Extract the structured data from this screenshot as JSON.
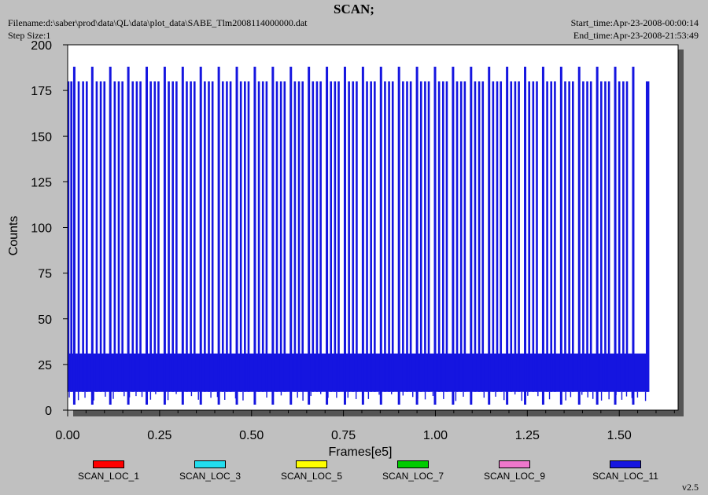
{
  "header": {
    "title": "SCAN;",
    "filename": "Filename:d:\\saber\\prod\\data\\QL\\data\\plot_data\\SABE_Tlm2008114000000.dat",
    "step_size": "Step Size:1",
    "start_time": "Start_time:Apr-23-2008-00:00:14",
    "end_time": "End_time:Apr-23-2008-21:53:49"
  },
  "version": "v2.5",
  "colors": {
    "background": "#c0c0c0",
    "plot_bg": "#ffffff",
    "series_main": "#1515e0"
  },
  "chart_data": {
    "type": "line",
    "title": "SCAN;",
    "xlabel": "Frames[e5]",
    "ylabel": "Counts",
    "xlim": [
      0,
      1.66
    ],
    "ylim": [
      0,
      200
    ],
    "x_ticks": [
      "0.00",
      "0.25",
      "0.50",
      "0.75",
      "1.00",
      "1.25",
      "1.50"
    ],
    "y_ticks": [
      "0",
      "25",
      "50",
      "75",
      "100",
      "125",
      "150",
      "175",
      "200"
    ],
    "legend": [
      {
        "name": "SCAN_LOC_1",
        "color": "#ff0000"
      },
      {
        "name": "SCAN_LOC_3",
        "color": "#22ddee"
      },
      {
        "name": "SCAN_LOC_5",
        "color": "#ffff00"
      },
      {
        "name": "SCAN_LOC_7",
        "color": "#00cc00"
      },
      {
        "name": "SCAN_LOC_9",
        "color": "#ee77cc"
      },
      {
        "name": "SCAN_LOC_11",
        "color": "#1515e0"
      }
    ],
    "series": [
      {
        "name": "SCAN_LOC_11",
        "x_range": [
          0,
          1.58
        ],
        "baseline_band": [
          10,
          31
        ],
        "low_spikes": 3,
        "mid_spike_level": 180,
        "tall_spike_level": 188,
        "tall_spike_positions": [
          0.018,
          0.067,
          0.116,
          0.165,
          0.215,
          0.264,
          0.313,
          0.362,
          0.411,
          0.46,
          0.509,
          0.558,
          0.607,
          0.656,
          0.705,
          0.754,
          0.803,
          0.852,
          0.901,
          0.95,
          0.999,
          1.048,
          1.097,
          1.146,
          1.195,
          1.244,
          1.293,
          1.342,
          1.391,
          1.44,
          1.489,
          1.538
        ],
        "mid_spike_positions": [
          0.002,
          0.01,
          0.03,
          0.042,
          0.052,
          0.079,
          0.09,
          0.1,
          0.128,
          0.139,
          0.149,
          0.177,
          0.188,
          0.198,
          0.226,
          0.237,
          0.247,
          0.275,
          0.286,
          0.296,
          0.324,
          0.335,
          0.345,
          0.373,
          0.384,
          0.394,
          0.422,
          0.433,
          0.443,
          0.471,
          0.482,
          0.492,
          0.52,
          0.531,
          0.541,
          0.569,
          0.58,
          0.59,
          0.618,
          0.629,
          0.639,
          0.667,
          0.678,
          0.688,
          0.716,
          0.727,
          0.737,
          0.765,
          0.776,
          0.786,
          0.814,
          0.825,
          0.835,
          0.863,
          0.874,
          0.884,
          0.912,
          0.923,
          0.933,
          0.961,
          0.972,
          0.982,
          1.01,
          1.021,
          1.031,
          1.059,
          1.07,
          1.08,
          1.108,
          1.119,
          1.129,
          1.157,
          1.168,
          1.178,
          1.206,
          1.217,
          1.227,
          1.255,
          1.266,
          1.276,
          1.304,
          1.315,
          1.325,
          1.353,
          1.364,
          1.374,
          1.402,
          1.413,
          1.423,
          1.451,
          1.462,
          1.472,
          1.5,
          1.511,
          1.521,
          1.575,
          1.579
        ]
      }
    ],
    "grid": false
  }
}
